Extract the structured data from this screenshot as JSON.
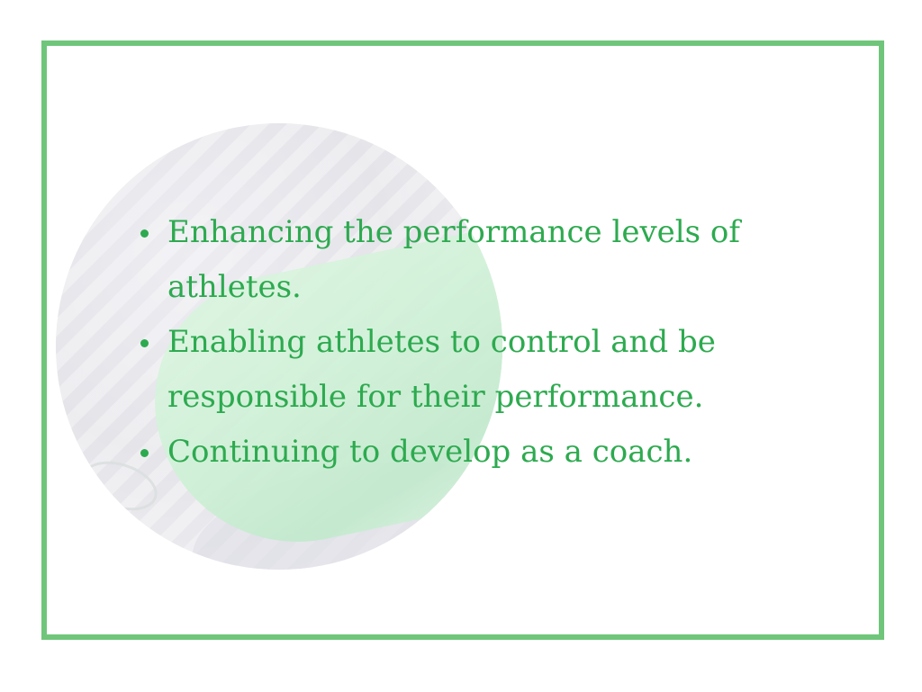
{
  "colors": {
    "frame": "#6fc67a",
    "text": "#2daa4f",
    "background": "#ffffff"
  },
  "bullets": [
    "Enhancing the performance levels of athletes.",
    "Enabling athletes to control and be responsible for their performance.",
    "Continuing to develop as a coach."
  ]
}
